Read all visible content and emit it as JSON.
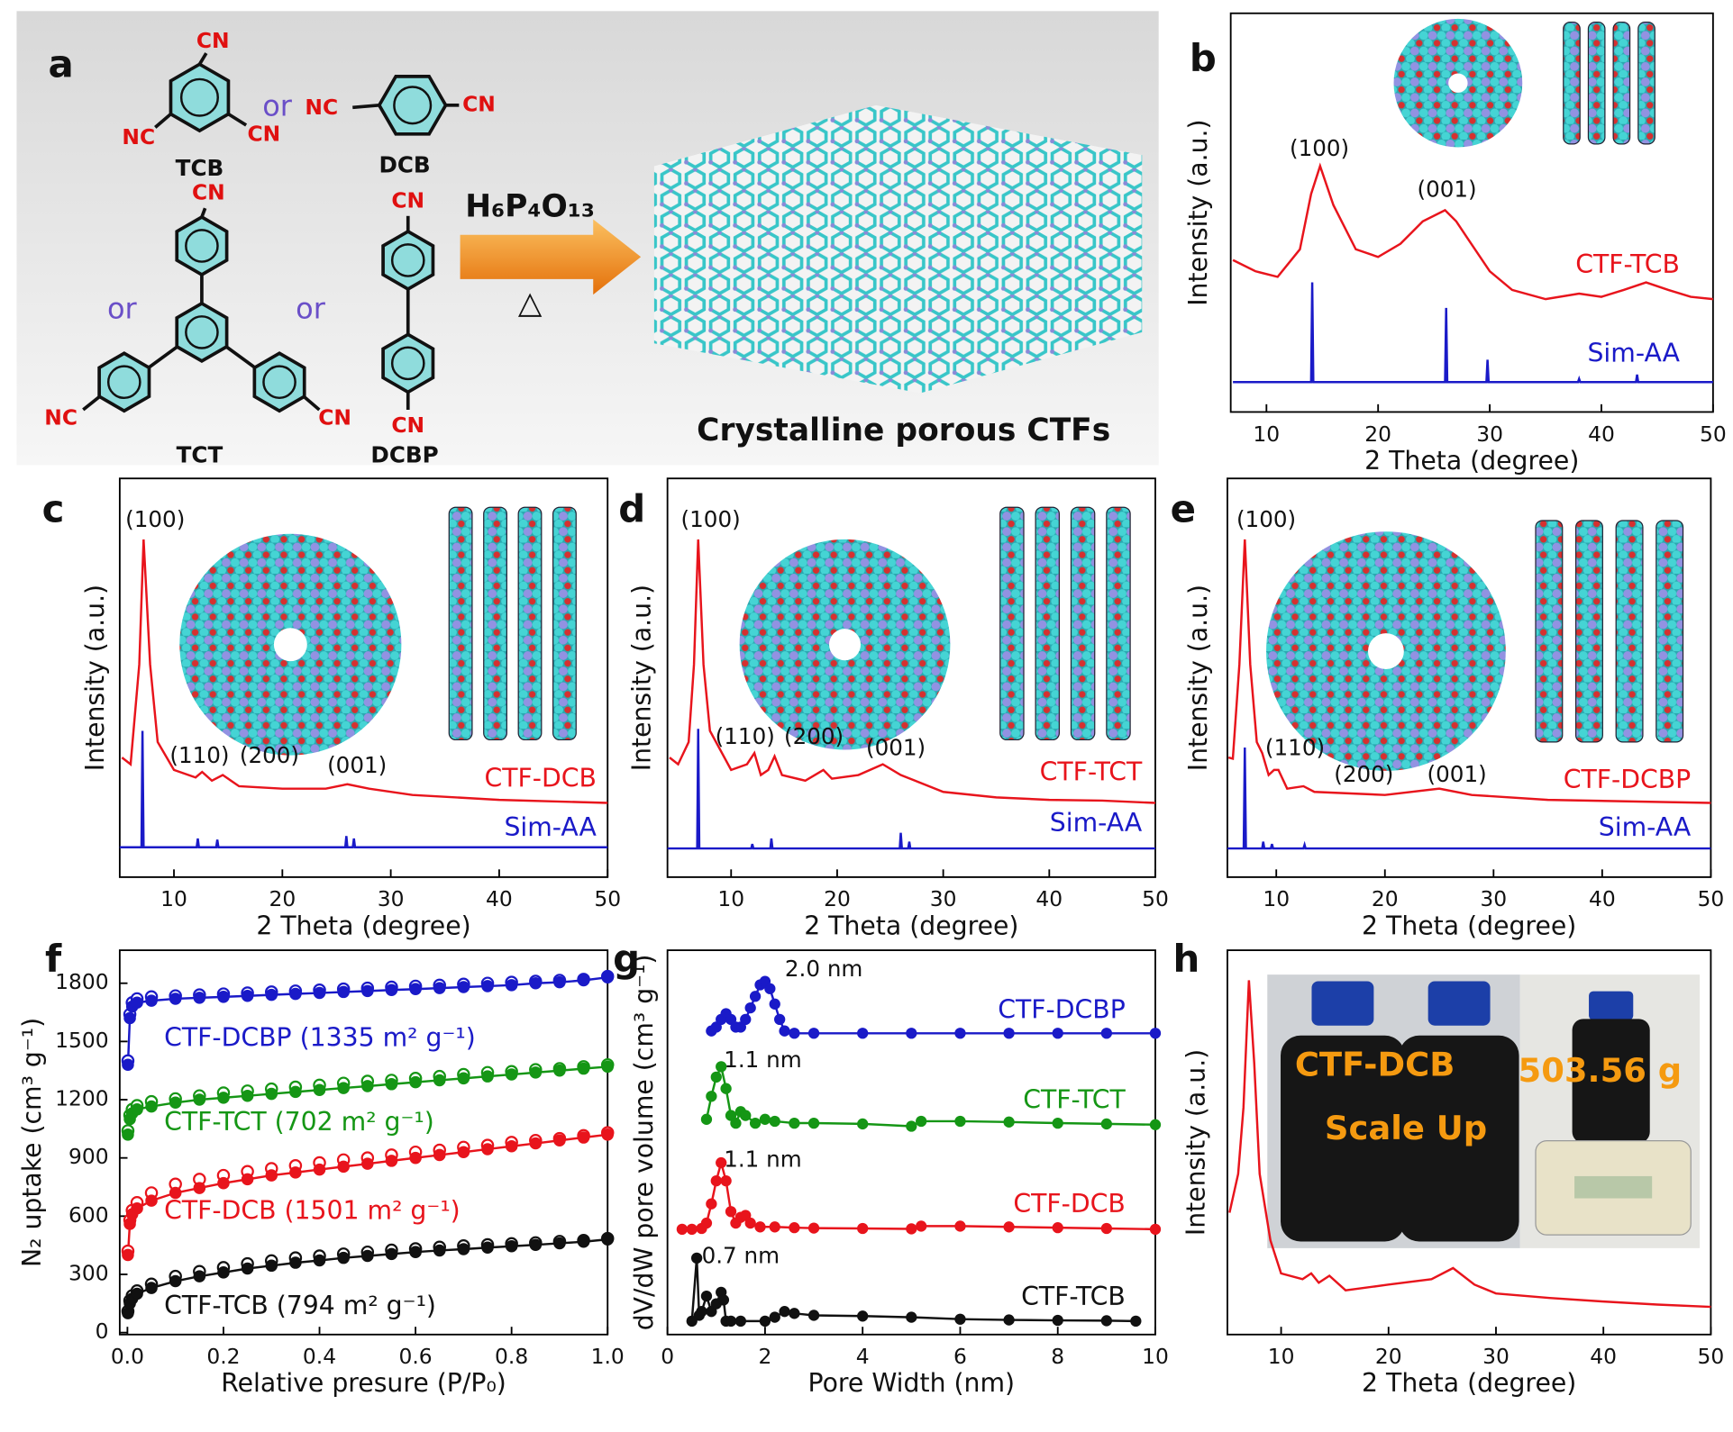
{
  "scheme": {
    "panel": "a",
    "texts": [
      "CN",
      "NC",
      "CN",
      "TCB",
      "or",
      "NC",
      "CN",
      "DCB",
      "CN",
      "or",
      "or",
      "NC",
      "CN",
      "TCT",
      "CN",
      "CN",
      "DCBP",
      "H₆P₄O₁₃",
      "△",
      "Crystalline porous CTFs"
    ]
  },
  "chart_data": [
    {
      "type": "line",
      "panel": "b",
      "xlabel": "2 Theta (degree)",
      "ylabel": "Intensity (a.u.)",
      "xlim": [
        6.8,
        50
      ],
      "xticks": [
        10,
        20,
        30,
        40,
        50
      ],
      "ylim": [
        0,
        100
      ],
      "annotations": [
        "(100)",
        "(001)"
      ],
      "series": [
        {
          "name": "CTF-TCB",
          "color": "#e8141c",
          "x": [
            7,
            9,
            11,
            13,
            14,
            14.8,
            16,
            18,
            20,
            22,
            24,
            26,
            27,
            28,
            30,
            32,
            35,
            38,
            40,
            42,
            44,
            46,
            48,
            50
          ],
          "values": [
            38.1,
            35.3,
            33.9,
            40.8,
            54.7,
            61.7,
            51.9,
            40.8,
            38.9,
            42.2,
            47.8,
            50.6,
            47.8,
            43.6,
            35.3,
            30.6,
            28.3,
            29.7,
            28.9,
            30.6,
            32.5,
            30.6,
            28.9,
            28.3
          ]
        },
        {
          "name": "Sim-AA",
          "color": "#1a1ac8",
          "x": [
            7,
            14.0,
            14.1,
            14.2,
            26.0,
            26.1,
            26.2,
            29.7,
            29.8,
            29.9,
            37.9,
            38,
            38.1,
            43.1,
            43.2,
            43.3,
            50
          ],
          "values": [
            7.5,
            7.5,
            32.5,
            7.5,
            7.5,
            26.1,
            7.5,
            7.5,
            13.1,
            7.5,
            7.5,
            8.3,
            7.5,
            7.5,
            9.4,
            7.5,
            7.5
          ]
        }
      ]
    },
    {
      "type": "line",
      "panel": "c",
      "xlabel": "2 Theta (degree)",
      "ylabel": "Intensity (a.u.)",
      "xlim": [
        5,
        50
      ],
      "xticks": [
        10,
        20,
        30,
        40,
        50
      ],
      "ylim": [
        0,
        100
      ],
      "annotations": [
        "(100)",
        "(110)",
        "(200)",
        "(001)"
      ],
      "series": [
        {
          "name": "CTF-DCB",
          "color": "#e8141c",
          "x": [
            5.2,
            6,
            6.8,
            7.2,
            7.8,
            8.5,
            10,
            12,
            12.6,
            13.5,
            14.5,
            16,
            20,
            24,
            26,
            28,
            32,
            40,
            50
          ],
          "values": [
            30,
            28.3,
            53.3,
            84.7,
            53.3,
            33.9,
            26.9,
            25,
            26.4,
            24.2,
            25.6,
            22.8,
            22.2,
            22.2,
            23.3,
            22.2,
            20.6,
            19.4,
            18.6
          ]
        },
        {
          "name": "Sim-AA",
          "color": "#1a1ac8",
          "x": [
            5,
            7.0,
            7.1,
            7.2,
            12.1,
            12.2,
            12.3,
            13.9,
            14,
            14.1,
            25.8,
            25.9,
            26.0,
            26.5,
            26.6,
            26.7,
            50
          ],
          "values": [
            7.5,
            7.5,
            36.7,
            7.5,
            7.5,
            9.7,
            7.5,
            7.5,
            9.4,
            7.5,
            7.5,
            10.3,
            7.5,
            7.5,
            9.7,
            7.5,
            7.5
          ]
        }
      ]
    },
    {
      "type": "line",
      "panel": "d",
      "xlabel": "2 Theta (degree)",
      "ylabel": "Intensity (a.u.)",
      "xlim": [
        4,
        50
      ],
      "xticks": [
        10,
        20,
        30,
        40,
        50
      ],
      "ylim": [
        0,
        100
      ],
      "annotations": [
        "(100)",
        "(110)",
        "(200)",
        "(001)"
      ],
      "series": [
        {
          "name": "CTF-TCT",
          "color": "#e8141c",
          "x": [
            4.2,
            5,
            6,
            6.5,
            6.9,
            7.4,
            8,
            10,
            11.5,
            12.2,
            12.8,
            13.5,
            14.1,
            14.8,
            17,
            18.7,
            19.5,
            22,
            24.3,
            26,
            30,
            35,
            40,
            45,
            50
          ],
          "values": [
            30,
            28.3,
            33.9,
            53.3,
            84.7,
            53.3,
            36.7,
            26.9,
            28.3,
            31.1,
            25.6,
            26.9,
            30.3,
            25.6,
            24.2,
            26.9,
            24.7,
            25.6,
            28.3,
            25.6,
            21.4,
            20,
            19.4,
            19.2,
            18.6
          ]
        },
        {
          "name": "Sim-AA",
          "color": "#1a1ac8",
          "x": [
            4,
            6.8,
            6.9,
            7.0,
            11.9,
            12,
            12.1,
            13.7,
            13.8,
            13.9,
            25.9,
            26,
            26.1,
            26.7,
            26.8,
            26.9,
            50
          ],
          "values": [
            7.2,
            7.2,
            37.2,
            7.2,
            7.2,
            8.3,
            7.2,
            7.2,
            9.7,
            7.2,
            7.2,
            11.1,
            7.2,
            7.2,
            8.9,
            7.2,
            7.2
          ]
        }
      ]
    },
    {
      "type": "line",
      "panel": "e",
      "xlabel": "2 Theta (degree)",
      "ylabel": "Intensity (a.u.)",
      "xlim": [
        5.5,
        50
      ],
      "xticks": [
        10,
        20,
        30,
        40,
        50
      ],
      "ylim": [
        0,
        100
      ],
      "annotations": [
        "(100)",
        "(110)",
        "(200)",
        "(001)"
      ],
      "series": [
        {
          "name": "CTF-DCBP",
          "color": "#e8141c",
          "x": [
            5.6,
            6,
            6.6,
            7.1,
            7.6,
            8.2,
            8.7,
            9.3,
            9.8,
            10.2,
            11,
            12.5,
            13.5,
            20,
            25,
            28,
            35,
            50
          ],
          "values": [
            30,
            29.7,
            53.3,
            84.7,
            53.3,
            33.9,
            31.1,
            25.6,
            26.9,
            26.9,
            22.2,
            22.8,
            21.4,
            20.6,
            22.2,
            20.6,
            19.4,
            18.6
          ]
        },
        {
          "name": "Sim-AA",
          "color": "#1a1ac8",
          "x": [
            5.5,
            7.0,
            7.1,
            7.2,
            8.7,
            8.8,
            8.9,
            9.5,
            9.6,
            9.7,
            12.5,
            12.6,
            12.7,
            50
          ],
          "values": [
            7.2,
            7.2,
            32.5,
            7.2,
            7.2,
            8.9,
            7.2,
            7.2,
            8.3,
            7.2,
            7.2,
            8.1,
            7.2,
            7.2
          ]
        }
      ]
    },
    {
      "type": "scatter",
      "panel": "f",
      "xlabel": "Relative presure (P/P₀)",
      "ylabel": "N₂ uptake (cm³ g⁻¹)",
      "xlim": [
        -0.016,
        1.0
      ],
      "xticks": [
        {
          "value": 0,
          "label": "0.0"
        },
        0.2,
        0.4,
        0.6,
        0.8,
        {
          "value": 1,
          "label": "1.0"
        }
      ],
      "ylim": [
        -10,
        1970
      ],
      "yticks": [
        0,
        300,
        600,
        900,
        1200,
        1500,
        1800
      ],
      "x": [
        0.001,
        0.005,
        0.01,
        0.02,
        0.05,
        0.1,
        0.15,
        0.2,
        0.25,
        0.3,
        0.35,
        0.4,
        0.45,
        0.5,
        0.55,
        0.6,
        0.65,
        0.7,
        0.75,
        0.8,
        0.85,
        0.9,
        0.95,
        1.0
      ],
      "series": [
        {
          "name": "CTF-DCBP (1335 m² g⁻¹)",
          "color": "#1a1ac8",
          "values": [
            1380,
            1620,
            1680,
            1700,
            1710,
            1720,
            1725,
            1730,
            1735,
            1740,
            1745,
            1750,
            1755,
            1760,
            1765,
            1770,
            1775,
            1780,
            1785,
            1790,
            1800,
            1805,
            1815,
            1830
          ],
          "desorption": [
            1400,
            1640,
            1700,
            1720,
            1730,
            1735,
            1740,
            1745,
            1750,
            1755,
            1760,
            1765,
            1770,
            1775,
            1780,
            1785,
            1790,
            1795,
            1800,
            1805,
            1810,
            1815,
            1820,
            1835
          ]
        },
        {
          "name": "CTF-TCT (702 m² g⁻¹)",
          "color": "#159615",
          "values": [
            1020,
            1100,
            1130,
            1150,
            1165,
            1185,
            1200,
            1210,
            1220,
            1230,
            1240,
            1250,
            1260,
            1270,
            1280,
            1290,
            1300,
            1310,
            1320,
            1330,
            1340,
            1350,
            1360,
            1370
          ],
          "desorption": [
            1040,
            1120,
            1150,
            1170,
            1190,
            1205,
            1220,
            1235,
            1245,
            1255,
            1265,
            1275,
            1285,
            1295,
            1300,
            1310,
            1320,
            1330,
            1340,
            1345,
            1355,
            1360,
            1370,
            1380
          ]
        },
        {
          "name": "CTF-DCB (1501 m² g⁻¹)",
          "color": "#e8141c",
          "values": [
            400,
            560,
            610,
            640,
            680,
            720,
            745,
            770,
            790,
            810,
            825,
            840,
            855,
            870,
            885,
            900,
            915,
            930,
            945,
            960,
            975,
            990,
            1005,
            1020
          ],
          "desorption": [
            420,
            580,
            630,
            670,
            720,
            765,
            790,
            810,
            830,
            845,
            860,
            875,
            890,
            900,
            915,
            930,
            940,
            955,
            965,
            980,
            990,
            1000,
            1015,
            1030
          ]
        },
        {
          "name": "CTF-TCB (794 m² g⁻¹)",
          "color": "#111111",
          "values": [
            100,
            150,
            175,
            200,
            230,
            265,
            290,
            310,
            330,
            345,
            360,
            372,
            385,
            395,
            405,
            415,
            423,
            430,
            438,
            445,
            452,
            460,
            468,
            480
          ],
          "desorption": [
            110,
            165,
            190,
            215,
            250,
            290,
            315,
            335,
            355,
            370,
            385,
            395,
            405,
            415,
            425,
            432,
            440,
            447,
            453,
            458,
            463,
            470,
            475,
            485
          ]
        }
      ]
    },
    {
      "type": "scatter",
      "panel": "g",
      "xlabel": "Pore Width (nm)",
      "ylabel": "dV/dW pore volume (cm³ g⁻¹)",
      "xlim": [
        0,
        10
      ],
      "xticks": [
        0,
        2,
        4,
        6,
        8,
        10
      ],
      "ylim": [
        0,
        100
      ],
      "annotations": [
        "2.0 nm",
        "1.1 nm",
        "1.1 nm",
        "0.7 nm"
      ],
      "series": [
        {
          "name": "CTF-DCBP",
          "color": "#1a1ac8",
          "x": [
            0.9,
            1.0,
            1.1,
            1.2,
            1.3,
            1.4,
            1.5,
            1.6,
            1.7,
            1.8,
            1.9,
            2.0,
            2.1,
            2.2,
            2.3,
            2.4,
            2.6,
            3,
            4,
            5,
            6,
            7,
            8,
            9,
            10
          ],
          "values": [
            79,
            80,
            82,
            83.5,
            82,
            80,
            80,
            82,
            85,
            88,
            91,
            91.9,
            90,
            86,
            82,
            79,
            78.4,
            78.4,
            78.4,
            78.4,
            78.4,
            78.4,
            78.4,
            78.4,
            78.4
          ]
        },
        {
          "name": "CTF-TCT",
          "color": "#159615",
          "x": [
            0.8,
            0.9,
            1.0,
            1.1,
            1.2,
            1.3,
            1.4,
            1.5,
            1.6,
            1.8,
            2.0,
            2.2,
            2.6,
            3,
            4,
            5,
            5.2,
            6,
            7,
            8,
            9,
            10
          ],
          "values": [
            56,
            62,
            67,
            69.7,
            64,
            57,
            55,
            58,
            57,
            55,
            56,
            55.5,
            55,
            55,
            54.8,
            54.2,
            55.5,
            55.5,
            55.3,
            55,
            54.8,
            54.6
          ]
        },
        {
          "name": "CTF-DCB",
          "color": "#e8141c",
          "x": [
            0.3,
            0.5,
            0.7,
            0.8,
            0.9,
            1.0,
            1.1,
            1.2,
            1.3,
            1.4,
            1.5,
            1.6,
            1.7,
            1.9,
            2.2,
            2.6,
            3,
            4,
            5,
            5.2,
            6,
            7,
            8,
            9,
            10
          ],
          "values": [
            27.4,
            27.4,
            27.6,
            29,
            34,
            40,
            44.7,
            40,
            32,
            29,
            30.5,
            31,
            29,
            28,
            28,
            27.8,
            27.7,
            27.6,
            27.5,
            28.2,
            28.2,
            28,
            27.8,
            27.6,
            27.4
          ]
        },
        {
          "name": "CTF-TCB",
          "color": "#111111",
          "x": [
            0.5,
            0.6,
            0.65,
            0.7,
            0.8,
            0.9,
            1.0,
            1.1,
            1.15,
            1.2,
            1.3,
            1.5,
            2.0,
            2.2,
            2.4,
            2.6,
            3,
            4,
            5,
            6,
            7,
            8,
            9,
            9.6
          ],
          "values": [
            3.5,
            19.9,
            5,
            6,
            10,
            6,
            8,
            11,
            9,
            3.5,
            3.5,
            3.5,
            3.5,
            4.5,
            6,
            5.5,
            5,
            4.8,
            4.5,
            4,
            3.8,
            3.7,
            3.6,
            3.5
          ]
        }
      ]
    },
    {
      "type": "line",
      "panel": "h",
      "xlabel": "2 Theta (degree)",
      "ylabel": "Intensity (a.u.)",
      "xlim": [
        5,
        50
      ],
      "xticks": [
        10,
        20,
        30,
        40,
        50
      ],
      "ylim": [
        0,
        100
      ],
      "photo_labels": [
        "CTF-DCB",
        "Scale Up",
        "503.56 g"
      ],
      "series": [
        {
          "color": "#e8141c",
          "x": [
            5.2,
            6,
            6.5,
            7,
            7.5,
            8,
            9,
            10,
            12,
            12.8,
            13.5,
            14.5,
            16,
            20,
            24,
            26,
            28,
            30,
            35,
            40,
            45,
            50
          ],
          "values": [
            31.7,
            41.8,
            59.1,
            92.2,
            70.6,
            41.8,
            24.5,
            15.9,
            14.4,
            15.9,
            13.5,
            15.3,
            11.5,
            13,
            14.4,
            17.3,
            13,
            10.7,
            9.5,
            8.6,
            7.8,
            7.2
          ]
        }
      ]
    }
  ]
}
